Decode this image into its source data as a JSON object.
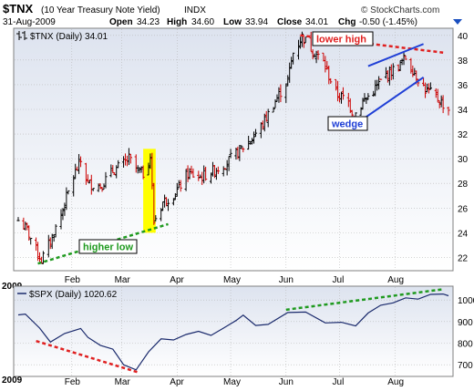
{
  "header": {
    "symbol": "$TNX",
    "description": "(10 Year Treasury Note Yield)",
    "exchange": "INDX",
    "brand": "© StockCharts.com",
    "date": "31-Aug-2009",
    "open_label": "Open",
    "open": "34.23",
    "high_label": "High",
    "high": "34.60",
    "low_label": "Low",
    "low": "33.94",
    "close_label": "Close",
    "close": "34.01",
    "chg_label": "Chg",
    "chg": "-0.50 (-1.45%)"
  },
  "colors": {
    "up_bar": "#000000",
    "down_bar": "#cc0000",
    "spx_line": "#1a2a6c",
    "panel_bg_top": "#dde3ef",
    "panel_bg_bottom": "#ffffff",
    "grid": "#b8b8b8",
    "highlight": "#ffff00",
    "annotation_green": "#1f9a1f",
    "annotation_red": "#e02020",
    "wedge_blue": "#1f3fd6"
  },
  "chart_data": [
    {
      "type": "ohlc",
      "legend": "$TNX (Daily) 34.01",
      "year_label": "2009",
      "ylim": [
        21,
        40.5
      ],
      "yticks": [
        22,
        24,
        26,
        28,
        30,
        32,
        34,
        36,
        38,
        40
      ],
      "xlim": [
        "2009-01-02",
        "2009-08-31"
      ],
      "month_ticks": [
        {
          "date": "2009-02-01",
          "label": "Feb"
        },
        {
          "date": "2009-03-01",
          "label": "Mar"
        },
        {
          "date": "2009-04-01",
          "label": "Apr"
        },
        {
          "date": "2009-05-01",
          "label": "May"
        },
        {
          "date": "2009-06-01",
          "label": "Jun"
        },
        {
          "date": "2009-07-01",
          "label": "Jul"
        },
        {
          "date": "2009-08-01",
          "label": "Aug"
        }
      ],
      "path_dates": [
        "2009-01-02",
        "2009-01-07",
        "2009-01-12",
        "2009-01-15",
        "2009-01-20",
        "2009-01-26",
        "2009-02-02",
        "2009-02-06",
        "2009-02-10",
        "2009-02-17",
        "2009-02-24",
        "2009-03-02",
        "2009-03-05",
        "2009-03-10",
        "2009-03-13",
        "2009-03-17",
        "2009-03-18",
        "2009-03-19",
        "2009-03-24",
        "2009-03-31",
        "2009-04-07",
        "2009-04-14",
        "2009-04-21",
        "2009-04-28",
        "2009-05-05",
        "2009-05-12",
        "2009-05-19",
        "2009-05-26",
        "2009-06-02",
        "2009-06-05",
        "2009-06-10",
        "2009-06-16",
        "2009-06-22",
        "2009-06-29",
        "2009-07-06",
        "2009-07-09",
        "2009-07-14",
        "2009-07-20",
        "2009-07-27",
        "2009-08-03",
        "2009-08-07",
        "2009-08-12",
        "2009-08-18",
        "2009-08-24",
        "2009-08-31"
      ],
      "path_values": [
        25.0,
        24.2,
        22.6,
        21.8,
        23.3,
        25.5,
        28.6,
        29.8,
        28.0,
        27.8,
        29.0,
        29.6,
        30.0,
        29.0,
        28.8,
        30.2,
        27.6,
        24.9,
        26.5,
        27.2,
        28.8,
        28.5,
        29.0,
        29.6,
        30.5,
        31.5,
        32.8,
        34.7,
        36.4,
        38.6,
        39.9,
        38.8,
        37.8,
        35.3,
        34.6,
        33.5,
        34.6,
        35.5,
        36.8,
        37.5,
        38.2,
        37.0,
        35.6,
        35.0,
        34.0
      ],
      "annotations": [
        {
          "label": "higher low",
          "kind": "green-dashed-line",
          "from": [
            "2009-01-13",
            21.5
          ],
          "to": [
            "2009-03-27",
            24.7
          ]
        },
        {
          "label": "",
          "kind": "yellow-highlight",
          "from": "2009-03-13",
          "to": "2009-03-20"
        },
        {
          "label": "lower high",
          "kind": "red-dashed-line",
          "from": [
            "2009-06-09",
            40.0
          ],
          "to": [
            "2009-08-28",
            38.6
          ]
        },
        {
          "label": "wedge",
          "kind": "blue-lines",
          "upper": [
            [
              "2009-07-17",
              37.5
            ],
            [
              "2009-08-17",
              39.3
            ]
          ],
          "lower": [
            [
              "2009-07-10",
              32.8
            ],
            [
              "2009-08-17",
              36.6
            ]
          ]
        }
      ]
    },
    {
      "type": "line",
      "legend": "$SPX (Daily) 1020.62",
      "year_label": "2009",
      "ylim": [
        650,
        1060
      ],
      "yticks": [
        700,
        800,
        900,
        1000
      ],
      "x": [
        "2009-01-02",
        "2009-01-06",
        "2009-01-14",
        "2009-01-20",
        "2009-01-28",
        "2009-02-06",
        "2009-02-10",
        "2009-02-17",
        "2009-02-24",
        "2009-03-02",
        "2009-03-09",
        "2009-03-16",
        "2009-03-23",
        "2009-03-30",
        "2009-04-06",
        "2009-04-13",
        "2009-04-20",
        "2009-04-27",
        "2009-05-04",
        "2009-05-08",
        "2009-05-15",
        "2009-05-22",
        "2009-06-02",
        "2009-06-12",
        "2009-06-23",
        "2009-07-02",
        "2009-07-10",
        "2009-07-17",
        "2009-07-24",
        "2009-07-31",
        "2009-08-07",
        "2009-08-14",
        "2009-08-21",
        "2009-08-28",
        "2009-08-31"
      ],
      "series": [
        {
          "name": "",
          "values": [
            931,
            935,
            870,
            805,
            845,
            868,
            827,
            790,
            772,
            700,
            676,
            760,
            820,
            815,
            840,
            855,
            836,
            870,
            905,
            930,
            882,
            887,
            942,
            944,
            894,
            897,
            880,
            940,
            976,
            987,
            1010,
            1004,
            1026,
            1028,
            1020
          ]
        }
      ],
      "annotations": [
        {
          "label": "",
          "kind": "red-dashed-line",
          "from": [
            "2009-01-12",
            810
          ],
          "to": [
            "2009-03-10",
            665
          ]
        },
        {
          "label": "",
          "kind": "green-dashed-line",
          "from": [
            "2009-06-01",
            955
          ],
          "to": [
            "2009-08-28",
            1050
          ]
        }
      ]
    }
  ],
  "main_legend": "$TNX (Daily) 34.01",
  "spx_legend": "$SPX (Daily) 1020.62",
  "year": "2009",
  "anno_higher_low": "higher low",
  "anno_lower_high": "lower high",
  "anno_wedge": "wedge"
}
